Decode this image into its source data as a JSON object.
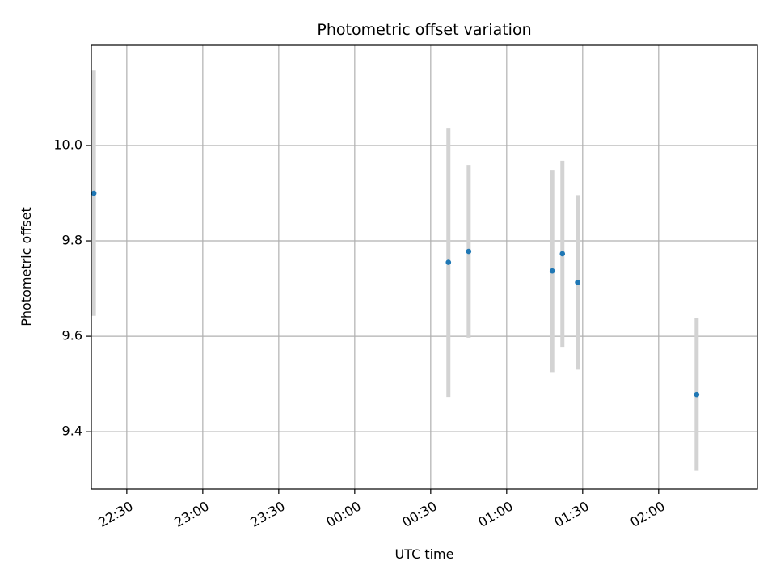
{
  "chart_data": {
    "type": "scatter",
    "title": "Photometric offset variation",
    "xlabel": "UTC time",
    "ylabel": "Photometric offset",
    "x_is_time": true,
    "xlim": [
      "22:16",
      "02:39"
    ],
    "ylim": [
      9.28,
      10.21
    ],
    "x_ticks": [
      "22:30",
      "23:00",
      "23:30",
      "00:00",
      "00:30",
      "01:00",
      "01:30",
      "02:00"
    ],
    "y_ticks": [
      9.4,
      9.6,
      9.8,
      10.0
    ],
    "y_tick_labels": [
      "9.4",
      "9.6",
      "9.8",
      "10.0"
    ],
    "grid": true,
    "colors": {
      "point": "#1f77b4",
      "errorbar": "#d3d3d3",
      "grid": "#b0b0b0"
    },
    "points": [
      {
        "x": "22:17",
        "y": 9.9,
        "yerr": 0.257
      },
      {
        "x": "00:37",
        "y": 9.755,
        "yerr": 0.282
      },
      {
        "x": "00:45",
        "y": 9.778,
        "yerr": 0.181
      },
      {
        "x": "01:18",
        "y": 9.737,
        "yerr": 0.212
      },
      {
        "x": "01:22",
        "y": 9.773,
        "yerr": 0.195
      },
      {
        "x": "01:28",
        "y": 9.713,
        "yerr": 0.183
      },
      {
        "x": "02:15",
        "y": 9.478,
        "yerr": 0.16
      }
    ]
  }
}
